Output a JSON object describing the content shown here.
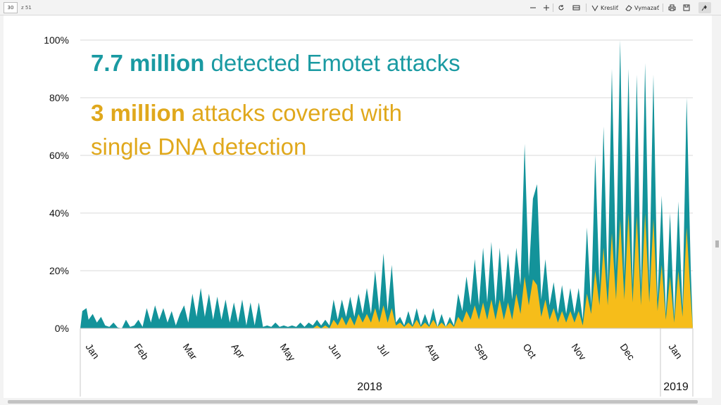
{
  "toolbar": {
    "page_number": "30",
    "page_count": "z 51",
    "draw_label": "Kresliť",
    "erase_label": "Vymazať"
  },
  "slide": {
    "headline_bold": "7.7 million",
    "headline_rest": " detected Emotet attacks",
    "sub_bold": "3 million",
    "sub_rest": " attacks covered with",
    "sub_line2": "single DNA detection"
  },
  "colors": {
    "teal": "#13939a",
    "gold": "#f6bd1a",
    "headline": "#1a9aa2",
    "subline": "#e0a81c"
  },
  "chart_data": {
    "type": "area",
    "ylim": [
      0,
      100
    ],
    "y_ticks": [
      "0%",
      "20%",
      "40%",
      "60%",
      "80%",
      "100%"
    ],
    "x_ticks": [
      "Jan",
      "Feb",
      "Mar",
      "Apr",
      "May",
      "Jun",
      "Jul",
      "Aug",
      "Sep",
      "Oct",
      "Nov",
      "Dec",
      "Jan"
    ],
    "years": [
      "2018",
      "2019"
    ],
    "grid": true,
    "series": [
      {
        "name": "detected Emotet attacks",
        "color": "#13939a",
        "points": [
          [
            0,
            0
          ],
          [
            0.5,
            6
          ],
          [
            1.5,
            7
          ],
          [
            2,
            3
          ],
          [
            3,
            5
          ],
          [
            4,
            2
          ],
          [
            5,
            4
          ],
          [
            6,
            1
          ],
          [
            7,
            0.5
          ],
          [
            8,
            2
          ],
          [
            9,
            0.3
          ],
          [
            10,
            0
          ],
          [
            11,
            3
          ],
          [
            12,
            0.5
          ],
          [
            13,
            1
          ],
          [
            14,
            3
          ],
          [
            15,
            0.5
          ],
          [
            16,
            7
          ],
          [
            17,
            2
          ],
          [
            18,
            8
          ],
          [
            19,
            3
          ],
          [
            20,
            7
          ],
          [
            21,
            2
          ],
          [
            22,
            6
          ],
          [
            23,
            1
          ],
          [
            24,
            5
          ],
          [
            25,
            8
          ],
          [
            26,
            2
          ],
          [
            27,
            12
          ],
          [
            28,
            4
          ],
          [
            29,
            14
          ],
          [
            30,
            4
          ],
          [
            31,
            12
          ],
          [
            32,
            3
          ],
          [
            33,
            11
          ],
          [
            34,
            3
          ],
          [
            35,
            10
          ],
          [
            36,
            2
          ],
          [
            37,
            9
          ],
          [
            38,
            2
          ],
          [
            39,
            10
          ],
          [
            40,
            1
          ],
          [
            41,
            9
          ],
          [
            42,
            1
          ],
          [
            43,
            9
          ],
          [
            44,
            0.5
          ],
          [
            45,
            1
          ],
          [
            46,
            0.5
          ],
          [
            47,
            2
          ],
          [
            48,
            0.5
          ],
          [
            49,
            1
          ],
          [
            50,
            0.5
          ],
          [
            51,
            1
          ],
          [
            52,
            0.5
          ],
          [
            53,
            2
          ],
          [
            54,
            0.5
          ],
          [
            55,
            2
          ],
          [
            56,
            1
          ],
          [
            57,
            3
          ],
          [
            58,
            1
          ],
          [
            59,
            3
          ],
          [
            60,
            1
          ],
          [
            61,
            10
          ],
          [
            62,
            3
          ],
          [
            63,
            10
          ],
          [
            64,
            4
          ],
          [
            65,
            11
          ],
          [
            66,
            4
          ],
          [
            67,
            12
          ],
          [
            68,
            5
          ],
          [
            69,
            14
          ],
          [
            70,
            5
          ],
          [
            71,
            20
          ],
          [
            72,
            6
          ],
          [
            73,
            26
          ],
          [
            74,
            6
          ],
          [
            75,
            22
          ],
          [
            76,
            2
          ],
          [
            77,
            4
          ],
          [
            78,
            1
          ],
          [
            79,
            6
          ],
          [
            80,
            1
          ],
          [
            81,
            7
          ],
          [
            82,
            1
          ],
          [
            83,
            5
          ],
          [
            84,
            1
          ],
          [
            85,
            7
          ],
          [
            86,
            0.5
          ],
          [
            87,
            5
          ],
          [
            88,
            0.5
          ],
          [
            89,
            4
          ],
          [
            90,
            1
          ],
          [
            91,
            12
          ],
          [
            92,
            6
          ],
          [
            93,
            18
          ],
          [
            94,
            8
          ],
          [
            95,
            24
          ],
          [
            96,
            8
          ],
          [
            97,
            28
          ],
          [
            98,
            9
          ],
          [
            99,
            30
          ],
          [
            100,
            8
          ],
          [
            101,
            28
          ],
          [
            102,
            9
          ],
          [
            103,
            26
          ],
          [
            104,
            10
          ],
          [
            105,
            28
          ],
          [
            106,
            15
          ],
          [
            107,
            64
          ],
          [
            108,
            18
          ],
          [
            109,
            45
          ],
          [
            110,
            50
          ],
          [
            111,
            10
          ],
          [
            112,
            24
          ],
          [
            113,
            8
          ],
          [
            114,
            16
          ],
          [
            115,
            5
          ],
          [
            116,
            15
          ],
          [
            117,
            5
          ],
          [
            118,
            14
          ],
          [
            119,
            5
          ],
          [
            120,
            14
          ],
          [
            121,
            3
          ],
          [
            122,
            35
          ],
          [
            123,
            8
          ],
          [
            124,
            60
          ],
          [
            125,
            15
          ],
          [
            126,
            70
          ],
          [
            127,
            15
          ],
          [
            128,
            90
          ],
          [
            129,
            20
          ],
          [
            130,
            100
          ],
          [
            131,
            18
          ],
          [
            132,
            90
          ],
          [
            133,
            15
          ],
          [
            134,
            88
          ],
          [
            135,
            14
          ],
          [
            136,
            92
          ],
          [
            137,
            15
          ],
          [
            138,
            88
          ],
          [
            139,
            10
          ],
          [
            140,
            46
          ],
          [
            141,
            5
          ],
          [
            142,
            40
          ],
          [
            143,
            4
          ],
          [
            144,
            44
          ],
          [
            145,
            7
          ],
          [
            146,
            80
          ],
          [
            147,
            20
          ],
          [
            147.5,
            0
          ]
        ]
      },
      {
        "name": "single DNA detection",
        "color": "#f6bd1a",
        "points": [
          [
            0,
            0
          ],
          [
            56,
            0
          ],
          [
            57,
            1
          ],
          [
            58,
            0
          ],
          [
            59,
            1
          ],
          [
            60,
            0
          ],
          [
            61,
            3
          ],
          [
            62,
            1
          ],
          [
            63,
            4
          ],
          [
            64,
            1
          ],
          [
            65,
            4
          ],
          [
            66,
            1
          ],
          [
            67,
            5
          ],
          [
            68,
            2
          ],
          [
            69,
            5
          ],
          [
            70,
            2
          ],
          [
            71,
            7
          ],
          [
            72,
            2
          ],
          [
            73,
            8
          ],
          [
            74,
            2
          ],
          [
            75,
            7
          ],
          [
            76,
            1
          ],
          [
            77,
            2
          ],
          [
            78,
            0.5
          ],
          [
            79,
            2
          ],
          [
            80,
            0.5
          ],
          [
            81,
            3
          ],
          [
            82,
            0.5
          ],
          [
            83,
            2
          ],
          [
            84,
            0.5
          ],
          [
            85,
            3
          ],
          [
            86,
            0.5
          ],
          [
            87,
            2
          ],
          [
            88,
            0.5
          ],
          [
            89,
            2
          ],
          [
            90,
            0.5
          ],
          [
            91,
            4
          ],
          [
            92,
            2
          ],
          [
            93,
            6
          ],
          [
            94,
            3
          ],
          [
            95,
            8
          ],
          [
            96,
            3
          ],
          [
            97,
            9
          ],
          [
            98,
            3
          ],
          [
            99,
            10
          ],
          [
            100,
            3
          ],
          [
            101,
            10
          ],
          [
            102,
            3
          ],
          [
            103,
            9
          ],
          [
            104,
            3
          ],
          [
            105,
            12
          ],
          [
            106,
            5
          ],
          [
            107,
            18
          ],
          [
            108,
            8
          ],
          [
            109,
            17
          ],
          [
            110,
            15
          ],
          [
            111,
            4
          ],
          [
            112,
            10
          ],
          [
            113,
            3
          ],
          [
            114,
            7
          ],
          [
            115,
            2
          ],
          [
            116,
            6
          ],
          [
            117,
            2
          ],
          [
            118,
            6
          ],
          [
            119,
            2
          ],
          [
            120,
            6
          ],
          [
            121,
            1
          ],
          [
            122,
            12
          ],
          [
            123,
            5
          ],
          [
            124,
            20
          ],
          [
            125,
            8
          ],
          [
            126,
            28
          ],
          [
            127,
            8
          ],
          [
            128,
            33
          ],
          [
            129,
            10
          ],
          [
            130,
            38
          ],
          [
            131,
            10
          ],
          [
            132,
            40
          ],
          [
            133,
            9
          ],
          [
            134,
            39
          ],
          [
            135,
            8
          ],
          [
            136,
            40
          ],
          [
            137,
            9
          ],
          [
            138,
            38
          ],
          [
            139,
            6
          ],
          [
            140,
            22
          ],
          [
            141,
            3
          ],
          [
            142,
            18
          ],
          [
            143,
            2
          ],
          [
            144,
            20
          ],
          [
            145,
            4
          ],
          [
            146,
            35
          ],
          [
            147,
            10
          ],
          [
            147.5,
            0
          ]
        ]
      }
    ]
  }
}
